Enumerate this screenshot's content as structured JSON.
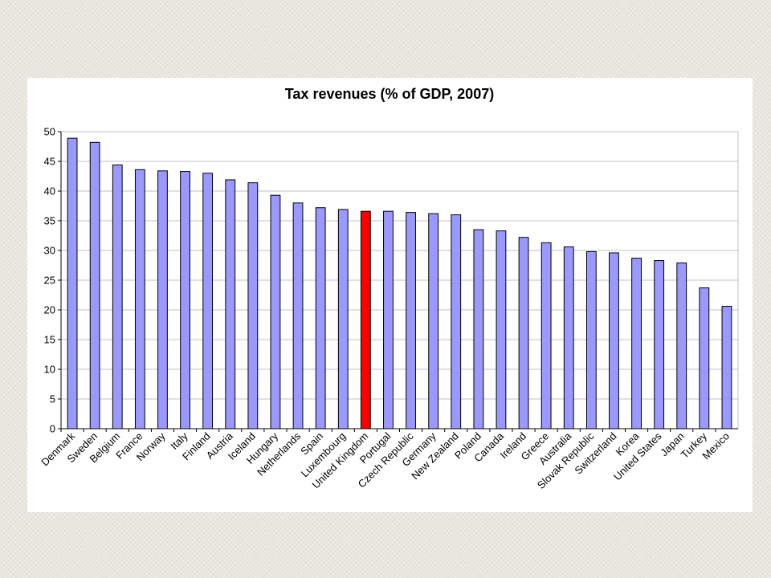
{
  "colors": {
    "bar": "#9999ff",
    "highlight": "#ff0000",
    "bar_stroke": "#000000",
    "grid": "#c0c0c0",
    "background": "#ffffff"
  },
  "chart_data": {
    "type": "bar",
    "title": "Tax revenues (% of GDP, 2007)",
    "xlabel": "",
    "ylabel": "",
    "ylim": [
      0,
      50
    ],
    "yticks": [
      0,
      5,
      10,
      15,
      20,
      25,
      30,
      35,
      40,
      45,
      50
    ],
    "grid": true,
    "legend": "none",
    "highlight": "United Kingdom",
    "categories": [
      "Denmark",
      "Sweden",
      "Belgium",
      "France",
      "Norway",
      "Italy",
      "Finland",
      "Austria",
      "Iceland",
      "Hungary",
      "Netherlands",
      "Spain",
      "Luxembourg",
      "United Kingdom",
      "Portugal",
      "Czech Republic",
      "Germany",
      "New Zealand",
      "Poland",
      "Canada",
      "Ireland",
      "Greece",
      "Australia",
      "Slovak Republic",
      "Switzerland",
      "Korea",
      "United States",
      "Japan",
      "Turkey",
      "Mexico"
    ],
    "values": [
      48.9,
      48.2,
      44.4,
      43.6,
      43.4,
      43.3,
      43.0,
      41.9,
      41.4,
      39.3,
      38.0,
      37.2,
      36.9,
      36.6,
      36.6,
      36.4,
      36.2,
      36.0,
      33.5,
      33.3,
      32.2,
      31.3,
      30.6,
      29.8,
      29.6,
      28.7,
      28.3,
      27.9,
      23.7,
      20.6
    ]
  }
}
